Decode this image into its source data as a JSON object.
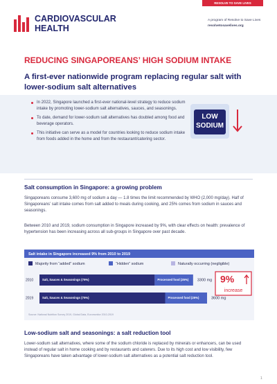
{
  "header": {
    "tab": "RESOLVE TO SAVE LIVES",
    "logo_line1": "CARDIOVASCULAR",
    "logo_line2": "HEALTH",
    "program": "A program of Resolve to Save Lives",
    "url": "resolvetosavelives.org"
  },
  "title": "REDUCING SINGAPOREANS’ HIGH SODIUM INTAKE",
  "subtitle": "A first-ever nationwide program replacing regular salt with lower-sodium salt alternatives",
  "bullets": [
    "In 2022, Singapore launched a first-ever national-level strategy to reduce sodium intake by promoting lower-sodium salt alternatives, sauces, and seasonings.",
    "To date, demand for lower-sodium salt alternatives has doubled among food and beverage operators.",
    "This initiative can serve as a model for countries looking to reduce sodium intake from foods added in the home and from the restaurant/catering sector."
  ],
  "graphic": {
    "line1": "LOW",
    "line2": "SODIUM"
  },
  "section1": {
    "heading": "Salt consumption in Singapore: a growing problem",
    "paragraphs": [
      "Singaporeans consume 3,600 mg of sodium a day — 1.8 times the limit recommended by WHO (2,000 mg/day). Half of Singaporeans’ salt intake comes from salt added to meals during cooking, and 25% comes from sodium in sauces and seasonings.",
      "Between 2010 and 2019, sodium consumption in Singapore increased by 9%, with clear effects on health: prevalence of hypertension has been increasing across all sub-groups in Singapore over past decade."
    ]
  },
  "chart_data": {
    "type": "bar",
    "orientation": "horizontal",
    "stacked": true,
    "title": "Salt intake in Singapore increased 9% from 2010 to 2019",
    "categories": [
      "2010",
      "2019"
    ],
    "series": [
      {
        "name": "Majority from “added” sodium",
        "color": "#2a2d78",
        "values": [
          75,
          75
        ],
        "value_labels": [
          "Salt, Sauces & Seasonings (75%)",
          "Salt, Sauces & Seasonings (75%)"
        ]
      },
      {
        "name": "“Hidden” sodium",
        "color": "#4b63c4",
        "values": [
          25,
          25
        ],
        "value_labels": [
          "Processed food (25%)",
          "Processed food (25%)"
        ]
      },
      {
        "name": "Naturally occurring (negligible)",
        "color": "#b8b5e2",
        "values": [
          null,
          null
        ]
      }
    ],
    "totals": [
      3300,
      3600
    ],
    "total_labels": [
      "3300 mg",
      "3600 mg"
    ],
    "callout": {
      "value": 9,
      "label": "9%",
      "text": "increase"
    },
    "source": "Source: National Nutrition Survey 2019, Global Data, Euromonitor 2010-2019"
  },
  "section2": {
    "heading": "Low-sodium salt and seasonings: a salt reduction tool",
    "paragraphs": [
      "Lower-sodium salt alternatives, where some of the sodium chloride is replaced by minerals or enhancers, can be used instead of regular salt in home cooking and by restaurants and caterers. Due to its high cost and low visibility, few Singaporeans have taken advantage of lower-sodium salt alternatives as a potential salt reduction tool."
    ]
  },
  "page_number": "1"
}
